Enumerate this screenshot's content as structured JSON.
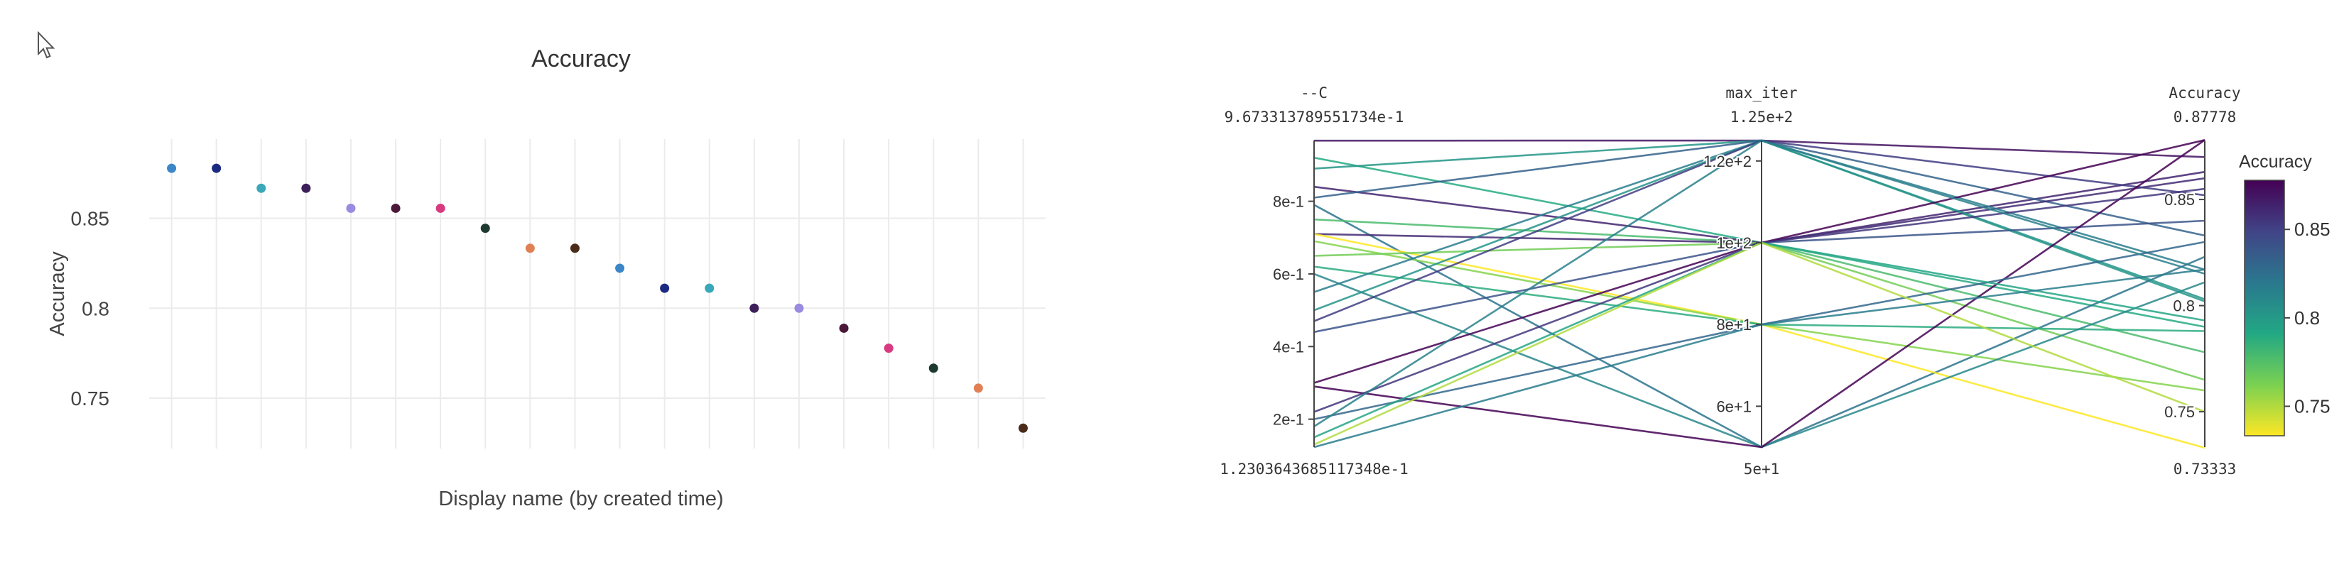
{
  "cursor_icon": "mouse-pointer-icon",
  "chart_data": [
    {
      "type": "scatter",
      "title": "Accuracy",
      "xlabel": "Display name (by created time)",
      "ylabel": "Accuracy",
      "ylim": [
        0.722,
        0.894
      ],
      "yticks": [
        0.75,
        0.8,
        0.85
      ],
      "yticklabels": [
        "0.75",
        "0.8",
        "0.85"
      ],
      "grid": true,
      "points": [
        {
          "y": 0.87778,
          "color": "#3a86c8"
        },
        {
          "y": 0.87778,
          "color": "#1b2a80"
        },
        {
          "y": 0.86667,
          "color": "#3aa8b8"
        },
        {
          "y": 0.86667,
          "color": "#3d1f5a"
        },
        {
          "y": 0.85556,
          "color": "#9a8ae0"
        },
        {
          "y": 0.85556,
          "color": "#4a1838"
        },
        {
          "y": 0.85556,
          "color": "#d83a80"
        },
        {
          "y": 0.84444,
          "color": "#1e3a30"
        },
        {
          "y": 0.83333,
          "color": "#e08055"
        },
        {
          "y": 0.83333,
          "color": "#4a2a18"
        },
        {
          "y": 0.82222,
          "color": "#3a86c8"
        },
        {
          "y": 0.81111,
          "color": "#1b2a80"
        },
        {
          "y": 0.81111,
          "color": "#3aa8b8"
        },
        {
          "y": 0.8,
          "color": "#3d1f5a"
        },
        {
          "y": 0.8,
          "color": "#9a8ae0"
        },
        {
          "y": 0.78889,
          "color": "#4a1838"
        },
        {
          "y": 0.77778,
          "color": "#d83a80"
        },
        {
          "y": 0.76667,
          "color": "#1e3a30"
        },
        {
          "y": 0.75556,
          "color": "#e08055"
        },
        {
          "y": 0.73333,
          "color": "#4a2a18"
        }
      ]
    },
    {
      "type": "parcoords",
      "axes": [
        {
          "name": "--C",
          "max_label": "9.673313789551734e-1",
          "min_label": "1.2303643685117348e-1",
          "range": [
            0.12303643685117348,
            0.9673313789551734
          ],
          "ticks": [
            0.2,
            0.4,
            0.6,
            0.8
          ],
          "ticklabels": [
            "2e-1",
            "4e-1",
            "6e-1",
            "8e-1"
          ]
        },
        {
          "name": "max_iter",
          "max_label": "1.25e+2",
          "min_label": "5e+1",
          "range": [
            50,
            125
          ],
          "ticks": [
            60,
            80,
            100,
            120
          ],
          "ticklabels": [
            "6e+1",
            "8e+1",
            "1e+2",
            "1.2e+2"
          ]
        },
        {
          "name": "Accuracy",
          "max_label": "0.87778",
          "min_label": "0.73333",
          "range": [
            0.73333,
            0.87778
          ],
          "ticks": [
            0.75,
            0.8,
            0.85
          ],
          "ticklabels": [
            "0.75",
            "0.8",
            "0.85"
          ]
        }
      ],
      "colorbar": {
        "title": "Accuracy",
        "range": [
          0.73333,
          0.87778
        ],
        "ticks": [
          0.75,
          0.8,
          0.85
        ],
        "ticklabels": [
          "0.75",
          "0.8",
          "0.85"
        ],
        "colorscale": [
          "#fde725",
          "#7ad151",
          "#22a884",
          "#2a788e",
          "#414487",
          "#440154"
        ]
      },
      "lines": [
        [
          0.967,
          125,
          0.87
        ],
        [
          0.92,
          100,
          0.79
        ],
        [
          0.89,
          125,
          0.802
        ],
        [
          0.84,
          100,
          0.863
        ],
        [
          0.81,
          125,
          0.833
        ],
        [
          0.79,
          50,
          0.823
        ],
        [
          0.75,
          100,
          0.778
        ],
        [
          0.71,
          100,
          0.86
        ],
        [
          0.71,
          80,
          0.733
        ],
        [
          0.69,
          80,
          0.76
        ],
        [
          0.65,
          100,
          0.765
        ],
        [
          0.62,
          80,
          0.788
        ],
        [
          0.6,
          50,
          0.811
        ],
        [
          0.55,
          125,
          0.817
        ],
        [
          0.5,
          125,
          0.803
        ],
        [
          0.47,
          125,
          0.852
        ],
        [
          0.44,
          100,
          0.84
        ],
        [
          0.3,
          100,
          0.878
        ],
        [
          0.29,
          50,
          0.878
        ],
        [
          0.22,
          100,
          0.855
        ],
        [
          0.2,
          80,
          0.83
        ],
        [
          0.18,
          125,
          0.815
        ],
        [
          0.15,
          100,
          0.793
        ],
        [
          0.13,
          100,
          0.75
        ],
        [
          0.123,
          80,
          0.817
        ]
      ]
    }
  ]
}
